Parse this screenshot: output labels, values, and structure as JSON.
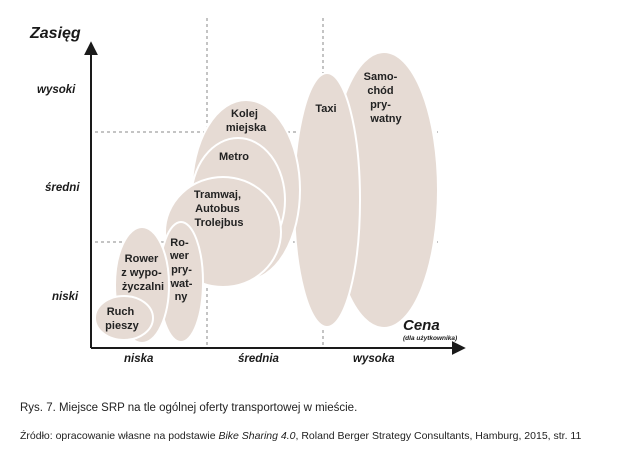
{
  "y_axis": {
    "title": "Zasięg",
    "ticks": [
      "wysoki",
      "średni",
      "niski"
    ]
  },
  "x_axis": {
    "title": "Cena",
    "subtitle": "(dla użytkownika)",
    "ticks": [
      "niska",
      "średnia",
      "wysoka"
    ]
  },
  "modes": {
    "ruch_pieszy": [
      "Ruch",
      "pieszy"
    ],
    "rower_wypozyczalni": [
      "Rower",
      "z wypo-",
      "życzalni"
    ],
    "rower_prywatny": [
      "Ro-",
      "wer",
      "pry-",
      "wat-",
      "ny"
    ],
    "tramwaj": [
      "Tramwaj,",
      "Autobus",
      "Trolejbus"
    ],
    "metro": [
      "Metro"
    ],
    "kolej": [
      "Kolej",
      "miejska"
    ],
    "taxi": [
      "Taxi"
    ],
    "samochod": [
      "Samo-",
      "chód",
      "pry-",
      "watny"
    ]
  },
  "caption": {
    "figure": "Rys. 7. Miejsce SRP na tle ogólnej oferty transportowej w mieście.",
    "source_prefix": "Źródło: opracowanie własne na podstawie ",
    "source_title": "Bike Sharing 4.0",
    "source_suffix": ", Roland Berger Strategy Consultants, Hamburg, 2015, str. 11"
  }
}
